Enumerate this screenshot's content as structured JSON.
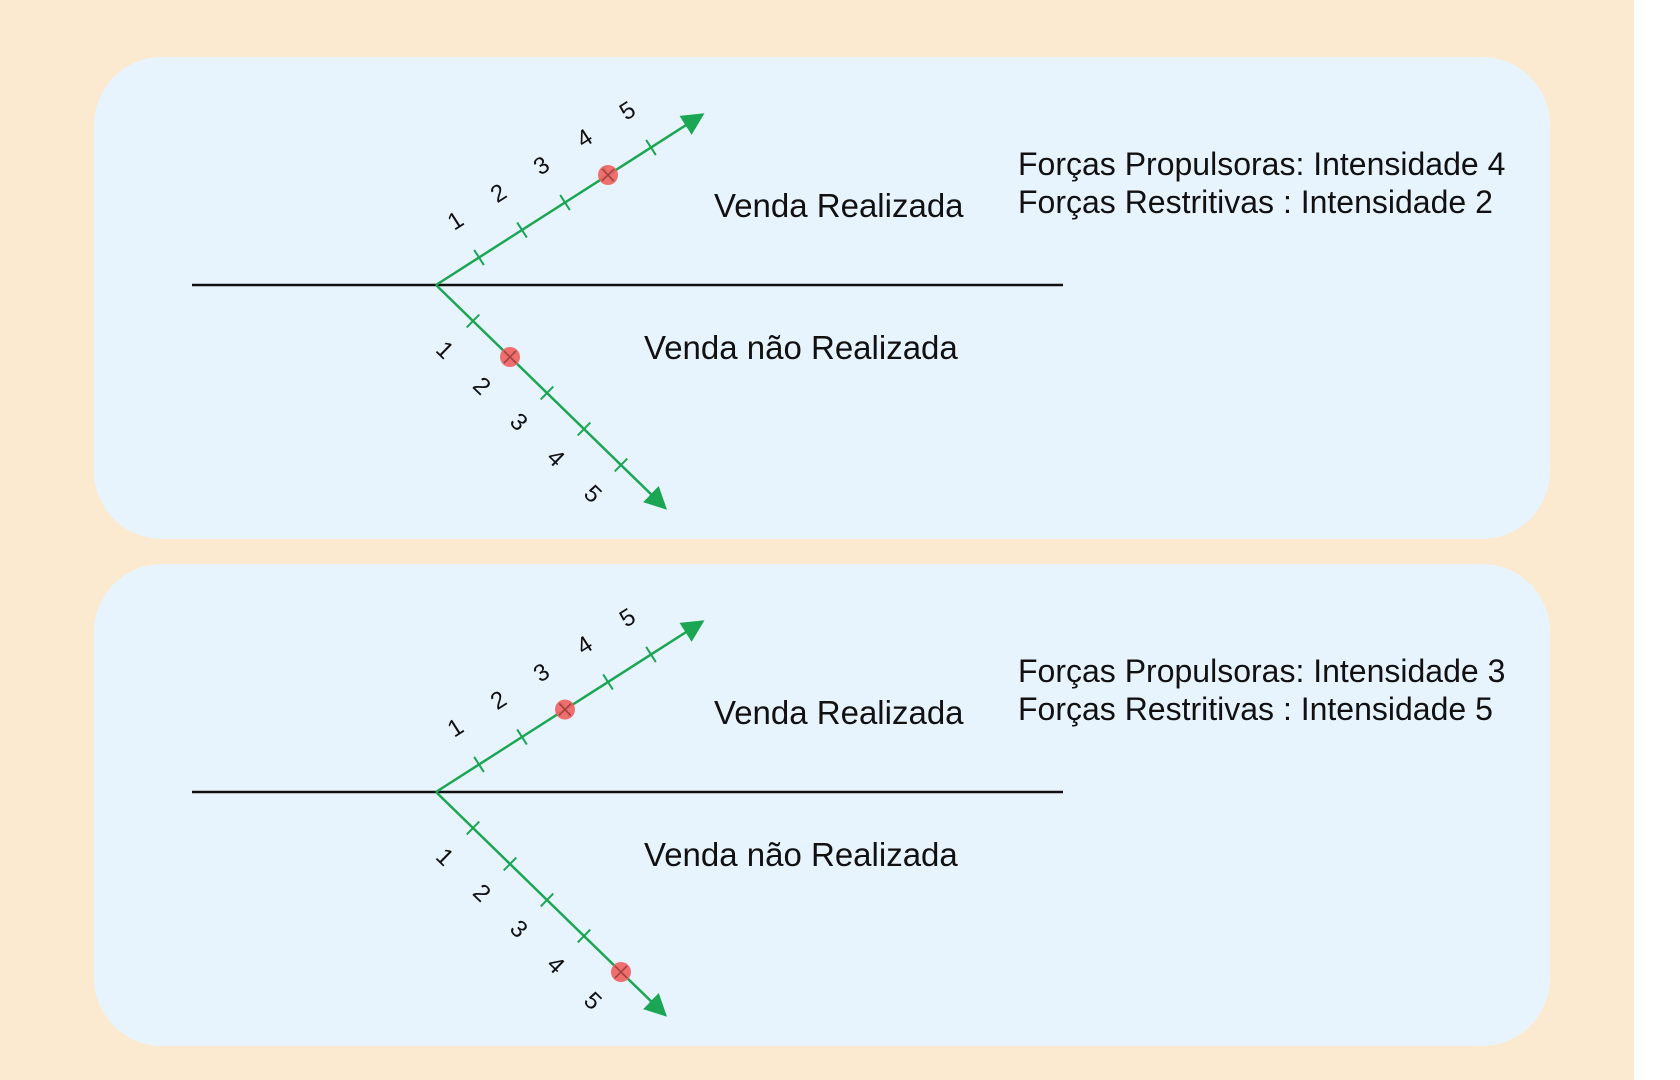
{
  "colors": {
    "background": "#fbe9d0",
    "panel": "#e8f4fd",
    "axis_line": "#111111",
    "force_arrow": "#1aa653",
    "marker": "#f0605e"
  },
  "diagrams": [
    {
      "label_upper": "Venda Realizada",
      "label_lower": "Venda não Realizada",
      "upper_scale": [
        "1",
        "2",
        "3",
        "4",
        "5"
      ],
      "lower_scale": [
        "1",
        "2",
        "3",
        "4",
        "5"
      ],
      "upper_marker": 4,
      "lower_marker": 2,
      "info_line_1": "Forças Propulsoras: Intensidade 4",
      "info_line_2": "Forças Restritivas : Intensidade 2"
    },
    {
      "label_upper": "Venda Realizada",
      "label_lower": "Venda não Realizada",
      "upper_scale": [
        "1",
        "2",
        "3",
        "4",
        "5"
      ],
      "lower_scale": [
        "1",
        "2",
        "3",
        "4",
        "5"
      ],
      "upper_marker": 3,
      "lower_marker": 5,
      "info_line_1": "Forças Propulsoras: Intensidade 3",
      "info_line_2": "Forças Restritivas : Intensidade 5"
    }
  ]
}
